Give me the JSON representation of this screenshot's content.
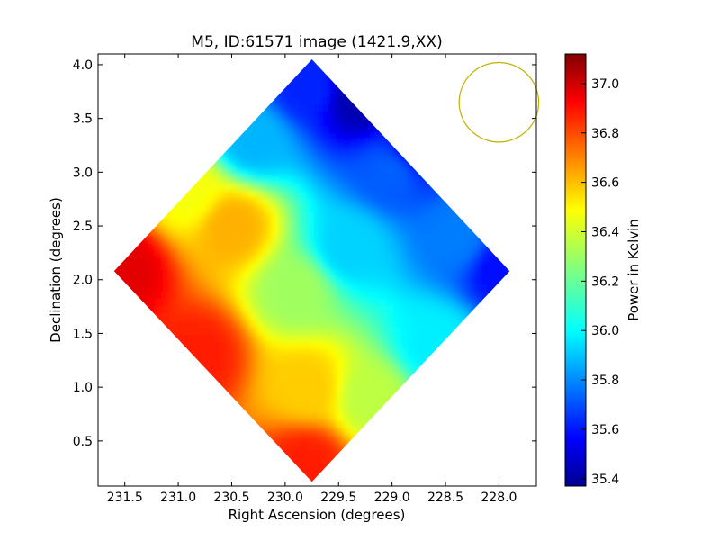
{
  "chart_data": {
    "type": "heatmap",
    "title": "M5, ID:61571 image (1421.9,XX)",
    "xlabel": "Right Ascension (degrees)",
    "ylabel": "Declination (degrees)",
    "xlim": [
      231.75,
      227.65
    ],
    "ylim": [
      0.08,
      4.1
    ],
    "x_ticks": [
      {
        "value": 231.5,
        "label": "231.5"
      },
      {
        "value": 231.0,
        "label": "231.0"
      },
      {
        "value": 230.5,
        "label": "230.5"
      },
      {
        "value": 230.0,
        "label": "230.0"
      },
      {
        "value": 229.5,
        "label": "229.5"
      },
      {
        "value": 229.0,
        "label": "229.0"
      },
      {
        "value": 228.5,
        "label": "228.5"
      },
      {
        "value": 228.0,
        "label": "228.0"
      }
    ],
    "y_ticks": [
      {
        "value": 0.5,
        "label": "0.5"
      },
      {
        "value": 1.0,
        "label": "1.0"
      },
      {
        "value": 1.5,
        "label": "1.5"
      },
      {
        "value": 2.0,
        "label": "2.0"
      },
      {
        "value": 2.5,
        "label": "2.5"
      },
      {
        "value": 3.0,
        "label": "3.0"
      },
      {
        "value": 3.5,
        "label": "3.5"
      },
      {
        "value": 4.0,
        "label": "4.0"
      }
    ],
    "colormap": "jet",
    "colorbar": {
      "label": "Power in Kelvin",
      "range": [
        35.37,
        37.12
      ],
      "ticks": [
        {
          "value": 35.4,
          "label": "35.4"
        },
        {
          "value": 35.6,
          "label": "35.6"
        },
        {
          "value": 35.8,
          "label": "35.8"
        },
        {
          "value": 36.0,
          "label": "36.0"
        },
        {
          "value": 36.2,
          "label": "36.2"
        },
        {
          "value": 36.4,
          "label": "36.4"
        },
        {
          "value": 36.6,
          "label": "36.6"
        },
        {
          "value": 36.8,
          "label": "36.8"
        },
        {
          "value": 37.0,
          "label": "37.0"
        }
      ]
    },
    "map_region": {
      "shape": "diamond",
      "vertices_ra_dec": [
        [
          229.75,
          4.05
        ],
        [
          227.9,
          2.08
        ],
        [
          229.75,
          0.12
        ],
        [
          231.6,
          2.08
        ]
      ]
    },
    "map_samples": [
      {
        "ra": 231.5,
        "dec": 2.1,
        "value": 36.95
      },
      {
        "ra": 230.8,
        "dec": 1.3,
        "value": 36.85
      },
      {
        "ra": 229.8,
        "dec": 0.3,
        "value": 36.85
      },
      {
        "ra": 230.5,
        "dec": 2.5,
        "value": 36.6
      },
      {
        "ra": 229.8,
        "dec": 1.0,
        "value": 36.55
      },
      {
        "ra": 230.9,
        "dec": 2.8,
        "value": 36.45
      },
      {
        "ra": 229.9,
        "dec": 1.9,
        "value": 36.3
      },
      {
        "ra": 229.2,
        "dec": 0.9,
        "value": 36.35
      },
      {
        "ra": 230.3,
        "dec": 3.3,
        "value": 35.9
      },
      {
        "ra": 229.4,
        "dec": 2.3,
        "value": 35.95
      },
      {
        "ra": 228.6,
        "dec": 1.4,
        "value": 36.0
      },
      {
        "ra": 229.8,
        "dec": 3.8,
        "value": 35.65
      },
      {
        "ra": 229.0,
        "dec": 3.0,
        "value": 35.75
      },
      {
        "ra": 228.4,
        "dec": 2.4,
        "value": 35.8
      },
      {
        "ra": 227.95,
        "dec": 2.1,
        "value": 35.6
      },
      {
        "ra": 229.3,
        "dec": 3.7,
        "value": 35.45
      },
      {
        "ra": 228.8,
        "dec": 3.2,
        "value": 35.6
      }
    ],
    "beam_marker": {
      "shape": "circle",
      "ra": 228.0,
      "dec": 3.65,
      "radius_deg": 0.37,
      "color": "#bfb300"
    },
    "grid": false,
    "legend": "none"
  }
}
